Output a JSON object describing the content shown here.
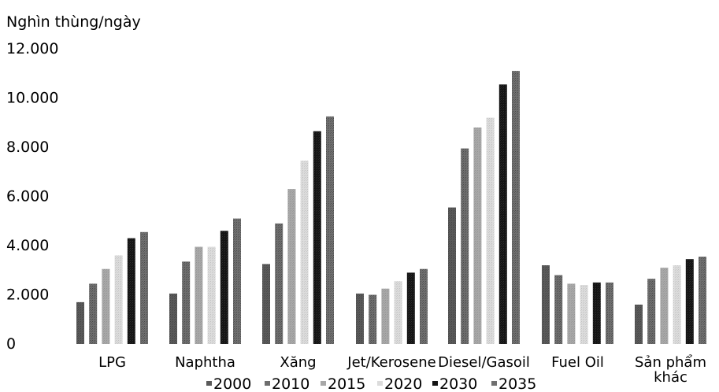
{
  "chart_data": {
    "type": "bar",
    "title": "",
    "ylabel": "Nghìn thùng/ngày",
    "xlabel": "",
    "ylim": [
      0,
      12000
    ],
    "yticks": [
      {
        "value": 0,
        "label": "0"
      },
      {
        "value": 2000,
        "label": "2.000"
      },
      {
        "value": 4000,
        "label": "4.000"
      },
      {
        "value": 6000,
        "label": "6.000"
      },
      {
        "value": 8000,
        "label": "8.000"
      },
      {
        "value": 10000,
        "label": "10.000"
      },
      {
        "value": 12000,
        "label": "12.000"
      }
    ],
    "grid": false,
    "legend_position": "bottom",
    "categories": [
      "LPG",
      "Naphtha",
      "Xăng",
      "Jet/Kerosene",
      "Diesel/Gasoil",
      "Fuel Oil",
      "Sản phẩm khác"
    ],
    "category_lines": [
      [
        "LPG"
      ],
      [
        "Naphtha"
      ],
      [
        "Xăng"
      ],
      [
        "Jet/Kerosene"
      ],
      [
        "Diesel/Gasoil"
      ],
      [
        "Fuel Oil"
      ],
      [
        "Sản phẩm",
        "khác"
      ]
    ],
    "series": [
      {
        "name": "2000",
        "color": "#5a5a5a",
        "values": [
          1700,
          2050,
          3250,
          2050,
          5550,
          3200,
          1600
        ]
      },
      {
        "name": "2010",
        "color": "#6e6e6e",
        "values": [
          2450,
          3350,
          4900,
          2000,
          7950,
          2800,
          2650
        ]
      },
      {
        "name": "2015",
        "color": "#a8a8a8",
        "values": [
          3050,
          3950,
          6300,
          2250,
          8800,
          2450,
          3100
        ]
      },
      {
        "name": "2020",
        "color": "#dcdcdc",
        "values": [
          3600,
          3950,
          7450,
          2550,
          9200,
          2400,
          3200
        ]
      },
      {
        "name": "2030",
        "color": "#141414",
        "values": [
          4300,
          4600,
          8650,
          2900,
          10550,
          2500,
          3450
        ]
      },
      {
        "name": "2035",
        "color": "#707070",
        "values": [
          4550,
          5100,
          9250,
          3050,
          11100,
          2500,
          3550
        ]
      }
    ]
  }
}
